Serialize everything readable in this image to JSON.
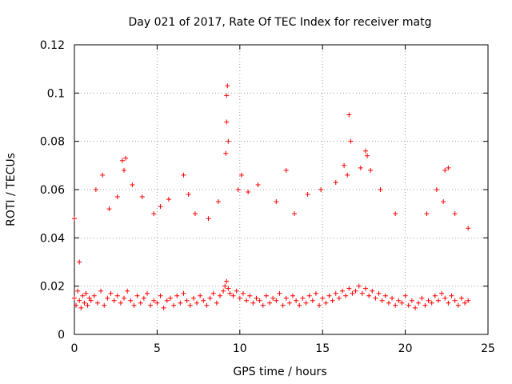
{
  "chart_data": {
    "type": "scatter",
    "title": "Day 021 of 2017, Rate Of TEC Index for receiver matg",
    "xlabel": "GPS time / hours",
    "ylabel": "ROTI / TECUs",
    "xlim": [
      0,
      25
    ],
    "ylim": [
      0,
      0.12
    ],
    "xticks": [
      0,
      5,
      10,
      15,
      20,
      25
    ],
    "xtick_labels": [
      "0",
      "5",
      "10",
      "15",
      "20",
      "25"
    ],
    "yticks": [
      0,
      0.02,
      0.04,
      0.06,
      0.08,
      0.1,
      0.12
    ],
    "ytick_labels": [
      "0",
      "0.02",
      "0.04",
      "0.06",
      "0.08",
      "0.1",
      "0.12"
    ],
    "grid": true,
    "marker": "+",
    "color": "#ff0000",
    "series": [
      {
        "name": "ROTI",
        "x": [
          0.0,
          0.1,
          0.2,
          0.3,
          0.4,
          0.5,
          0.6,
          0.7,
          0.8,
          0.9,
          1.0,
          1.2,
          1.4,
          1.6,
          1.8,
          2.0,
          2.2,
          2.4,
          2.6,
          2.8,
          3.0,
          3.2,
          3.4,
          3.6,
          3.8,
          4.0,
          4.2,
          4.4,
          4.6,
          4.8,
          5.0,
          5.2,
          5.4,
          5.6,
          5.8,
          6.0,
          6.2,
          6.4,
          6.6,
          6.8,
          7.0,
          7.2,
          7.4,
          7.6,
          7.8,
          8.0,
          8.2,
          8.4,
          8.6,
          8.8,
          9.0,
          9.1,
          9.2,
          9.3,
          9.4,
          9.6,
          9.8,
          10.0,
          10.2,
          10.4,
          10.6,
          10.8,
          11.0,
          11.2,
          11.4,
          11.6,
          11.8,
          12.0,
          12.2,
          12.4,
          12.6,
          12.8,
          13.0,
          13.2,
          13.4,
          13.6,
          13.8,
          14.0,
          14.2,
          14.4,
          14.6,
          14.8,
          15.0,
          15.2,
          15.4,
          15.6,
          15.8,
          16.0,
          16.2,
          16.4,
          16.6,
          16.8,
          17.0,
          17.2,
          17.4,
          17.6,
          17.8,
          18.0,
          18.2,
          18.4,
          18.6,
          18.8,
          19.0,
          19.2,
          19.4,
          19.6,
          19.8,
          20.0,
          20.2,
          20.4,
          20.6,
          20.8,
          21.0,
          21.2,
          21.4,
          21.6,
          21.8,
          22.0,
          22.2,
          22.4,
          22.6,
          22.8,
          23.0,
          23.2,
          23.4,
          23.6,
          23.8,
          0.0,
          0.3,
          1.3,
          1.7,
          2.1,
          2.6,
          2.9,
          3.0,
          3.1,
          3.5,
          4.1,
          4.8,
          5.2,
          5.7,
          6.6,
          6.9,
          7.3,
          8.1,
          8.7,
          9.15,
          9.2,
          9.25,
          9.2,
          9.3,
          9.9,
          10.1,
          10.5,
          11.1,
          12.2,
          12.8,
          13.3,
          14.1,
          14.9,
          15.8,
          16.3,
          16.5,
          16.6,
          16.7,
          17.3,
          17.6,
          17.7,
          17.9,
          18.5,
          19.4,
          21.3,
          21.9,
          22.3,
          22.4,
          22.6,
          23.0,
          23.8
        ],
        "y": [
          0.015,
          0.012,
          0.018,
          0.014,
          0.011,
          0.016,
          0.013,
          0.017,
          0.012,
          0.015,
          0.014,
          0.016,
          0.013,
          0.018,
          0.012,
          0.015,
          0.017,
          0.014,
          0.016,
          0.013,
          0.015,
          0.018,
          0.014,
          0.012,
          0.016,
          0.013,
          0.015,
          0.017,
          0.012,
          0.014,
          0.013,
          0.016,
          0.011,
          0.014,
          0.015,
          0.012,
          0.016,
          0.013,
          0.017,
          0.014,
          0.012,
          0.015,
          0.013,
          0.016,
          0.014,
          0.012,
          0.015,
          0.017,
          0.013,
          0.016,
          0.018,
          0.02,
          0.022,
          0.019,
          0.017,
          0.016,
          0.018,
          0.015,
          0.017,
          0.014,
          0.016,
          0.013,
          0.015,
          0.014,
          0.012,
          0.016,
          0.013,
          0.015,
          0.014,
          0.017,
          0.012,
          0.015,
          0.013,
          0.016,
          0.014,
          0.012,
          0.015,
          0.013,
          0.016,
          0.014,
          0.017,
          0.012,
          0.015,
          0.013,
          0.016,
          0.014,
          0.017,
          0.015,
          0.018,
          0.016,
          0.019,
          0.017,
          0.018,
          0.02,
          0.017,
          0.019,
          0.016,
          0.018,
          0.015,
          0.017,
          0.014,
          0.016,
          0.013,
          0.015,
          0.012,
          0.014,
          0.013,
          0.016,
          0.012,
          0.014,
          0.011,
          0.013,
          0.015,
          0.012,
          0.014,
          0.013,
          0.016,
          0.014,
          0.017,
          0.015,
          0.013,
          0.016,
          0.014,
          0.012,
          0.015,
          0.013,
          0.014,
          0.048,
          0.03,
          0.06,
          0.066,
          0.052,
          0.057,
          0.072,
          0.068,
          0.073,
          0.062,
          0.057,
          0.05,
          0.053,
          0.056,
          0.066,
          0.058,
          0.05,
          0.048,
          0.055,
          0.075,
          0.088,
          0.103,
          0.099,
          0.08,
          0.06,
          0.066,
          0.059,
          0.062,
          0.055,
          0.068,
          0.05,
          0.058,
          0.06,
          0.063,
          0.07,
          0.066,
          0.091,
          0.08,
          0.069,
          0.076,
          0.074,
          0.068,
          0.06,
          0.05,
          0.05,
          0.06,
          0.055,
          0.068,
          0.069,
          0.05,
          0.044
        ]
      }
    ]
  }
}
